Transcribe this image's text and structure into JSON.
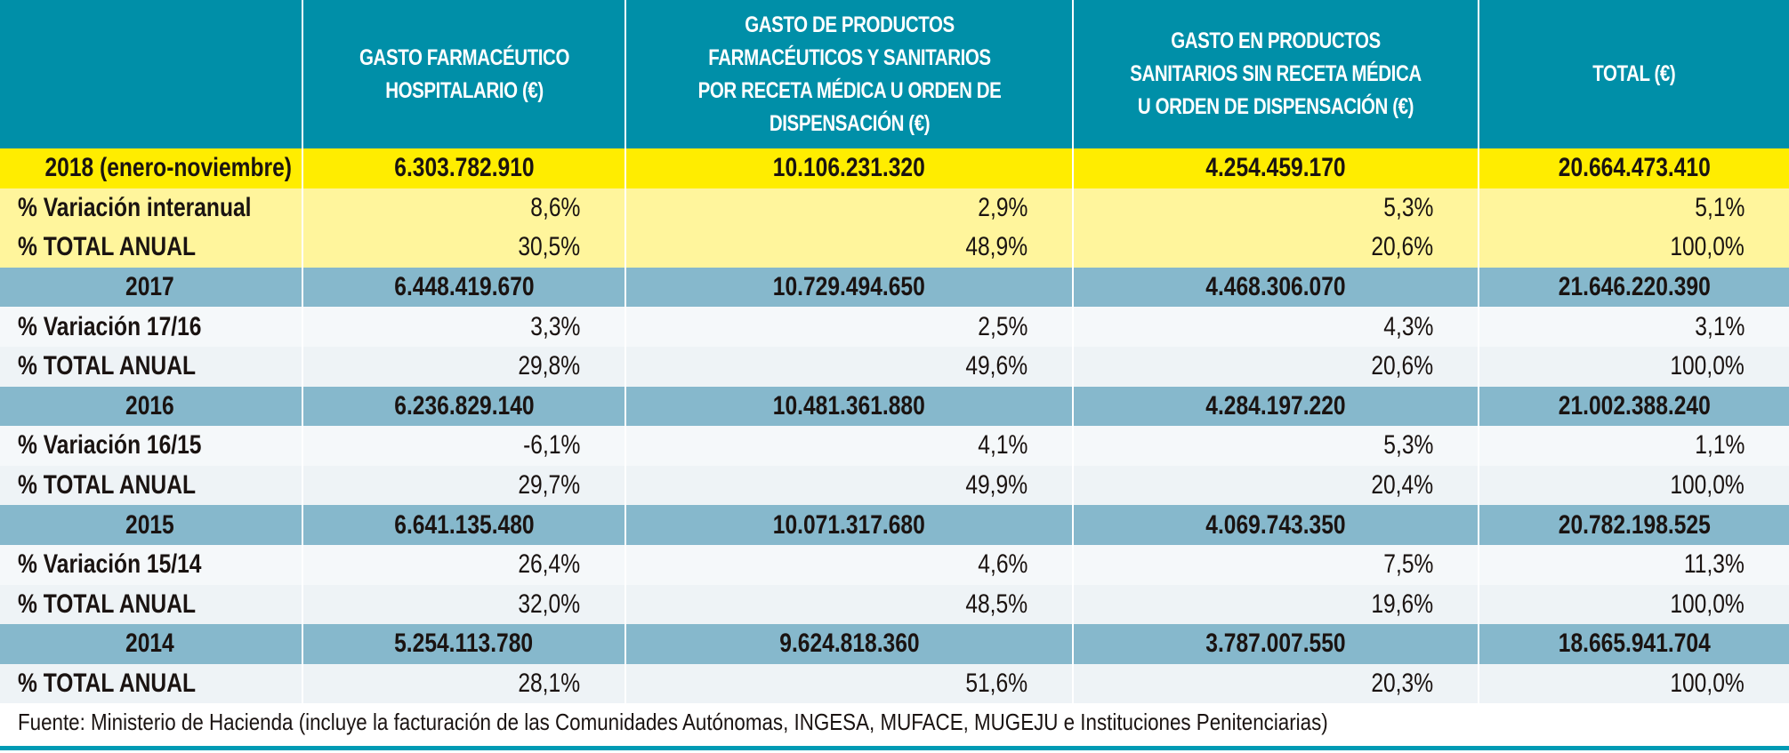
{
  "headers": [
    "",
    "GASTO FARMACÉUTICO HOSPITALARIO (€)",
    "GASTO DE PRODUCTOS FARMACÉUTICOS Y SANITARIOS POR RECETA MÉDICA U ORDEN DE DISPENSACIÓN (€)",
    "GASTO EN PRODUCTOS SANITARIOS SIN RECETA MÉDICA U ORDEN DE DISPENSACIÓN (€)",
    "TOTAL (€)"
  ],
  "rows": [
    {
      "label": "2018 (enero-noviembre)",
      "values": [
        "6.303.782.910",
        "10.106.231.320",
        "4.254.459.170",
        "20.664.473.410"
      ]
    },
    {
      "label": "% Variación interanual",
      "values": [
        "8,6%",
        "2,9%",
        "5,3%",
        "5,1%"
      ]
    },
    {
      "label": "% TOTAL ANUAL",
      "values": [
        "30,5%",
        "48,9%",
        "20,6%",
        "100,0%"
      ]
    },
    {
      "label": "2017",
      "values": [
        "6.448.419.670",
        "10.729.494.650",
        "4.468.306.070",
        "21.646.220.390"
      ]
    },
    {
      "label": "% Variación 17/16",
      "values": [
        "3,3%",
        "2,5%",
        "4,3%",
        "3,1%"
      ]
    },
    {
      "label": "% TOTAL ANUAL",
      "values": [
        "29,8%",
        "49,6%",
        "20,6%",
        "100,0%"
      ]
    },
    {
      "label": "2016",
      "values": [
        "6.236.829.140",
        "10.481.361.880",
        "4.284.197.220",
        "21.002.388.240"
      ]
    },
    {
      "label": "% Variación 16/15",
      "values": [
        "-6,1%",
        "4,1%",
        "5,3%",
        "1,1%"
      ]
    },
    {
      "label": "% TOTAL ANUAL",
      "values": [
        "29,7%",
        "49,9%",
        "20,4%",
        "100,0%"
      ]
    },
    {
      "label": "2015",
      "values": [
        "6.641.135.480",
        "10.071.317.680",
        "4.069.743.350",
        "20.782.198.525"
      ]
    },
    {
      "label": "% Variación 15/14",
      "values": [
        "26,4%",
        "4,6%",
        "7,5%",
        "11,3%"
      ]
    },
    {
      "label": "% TOTAL ANUAL",
      "values": [
        "32,0%",
        "48,5%",
        "19,6%",
        "100,0%"
      ]
    },
    {
      "label": "2014",
      "values": [
        "5.254.113.780",
        "9.624.818.360",
        "3.787.007.550",
        "18.665.941.704"
      ]
    },
    {
      "label": "% TOTAL ANUAL",
      "values": [
        "28,1%",
        "51,6%",
        "20,3%",
        "100,0%"
      ]
    }
  ],
  "footer": "Fuente: Ministerio de Hacienda (incluye la facturación de las Comunidades Autónomas, INGESA, MUFACE, MUGEJU e Instituciones Penitenciarias)",
  "colors": {
    "header": "#008fa8",
    "highlight_year": "#ffed00",
    "highlight_rows": "#fff59c",
    "year_rows": "#86b8cc",
    "rows": "#f5f8fa"
  }
}
